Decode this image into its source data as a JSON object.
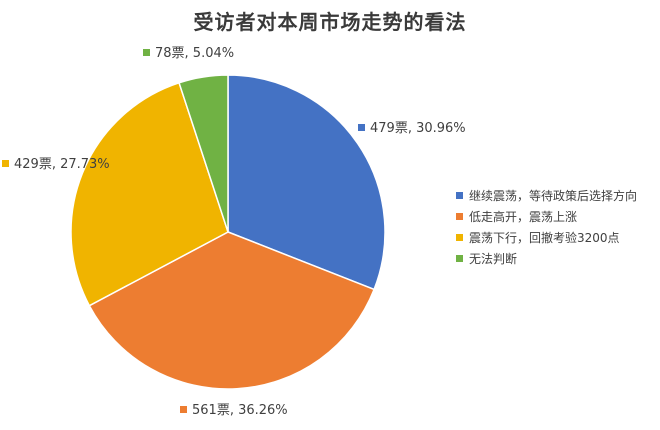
{
  "chart_data": {
    "type": "pie",
    "title": "受访者对本周市场走势的看法",
    "categories": [
      "继续震荡，等待政策后选择方向",
      "低走高开，震荡上涨",
      "震荡下行，回撤考验3200点",
      "无法判断"
    ],
    "values": [
      479,
      561,
      429,
      78
    ],
    "percentages": [
      30.96,
      36.26,
      27.73,
      5.04
    ],
    "data_labels": [
      "479票, 30.96%",
      "561票, 36.26%",
      "429票, 27.73%",
      "78票, 5.04%"
    ],
    "colors": [
      "#4472C4",
      "#ED7D31",
      "#F0B400",
      "#70B244"
    ],
    "legend_placement": "right"
  }
}
